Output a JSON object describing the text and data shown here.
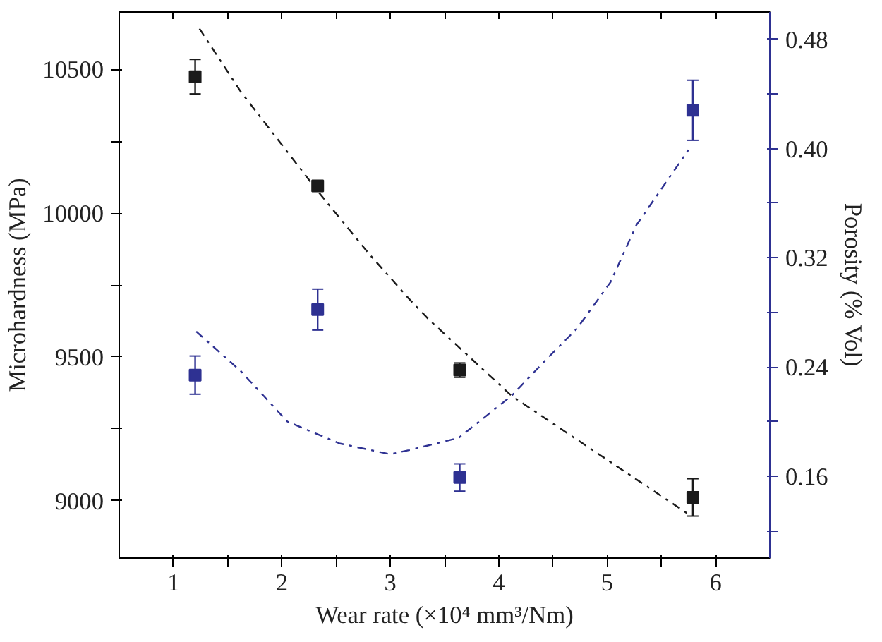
{
  "chart_data": {
    "type": "scatter",
    "xlabel": "Wear rate (×10⁴ mm³/Nm)",
    "ylabel": "Microhardness (MPa)",
    "y2label": "Porosity (% Vol)",
    "xlim": [
      0.5,
      6.5
    ],
    "xticks": [
      1,
      {
        "value": 1.5,
        "label": null
      },
      2,
      {
        "value": 2.5,
        "label": null
      },
      3,
      {
        "value": 3.5,
        "label": null
      },
      4,
      {
        "value": 4.5,
        "label": null
      },
      5,
      {
        "value": 5.5,
        "label": null
      },
      6
    ],
    "ylim": [
      8800,
      10700
    ],
    "yticks": [
      9000,
      {
        "value": 9250,
        "label": null
      },
      9500,
      {
        "value": 9750,
        "label": null
      },
      10000,
      {
        "value": 10250,
        "label": null
      },
      10500
    ],
    "y2lim": [
      0.1,
      0.5
    ],
    "y2ticks": [
      {
        "value": 0.12,
        "label": null
      },
      0.16,
      {
        "value": 0.2,
        "label": null
      },
      0.24,
      {
        "value": 0.28,
        "label": null
      },
      0.32,
      {
        "value": 0.36,
        "label": null
      },
      {
        "value": 0.4,
        "label": "0.40"
      },
      {
        "value": 0.44,
        "label": null
      },
      0.48
    ],
    "grid": false,
    "series": [
      {
        "marker": "square",
        "color": "#1a1a1a",
        "x": [
          1.2,
          2.33,
          3.64,
          5.79
        ],
        "values": [
          10475,
          10095,
          9454,
          9011
        ],
        "errors": [
          60,
          null,
          25,
          65
        ]
      },
      {
        "marker": "square",
        "color": "#2e3192",
        "axis": "y2",
        "x": [
          1.2,
          2.33,
          3.64,
          5.79
        ],
        "values": [
          0.234,
          0.282,
          0.159,
          0.428
        ],
        "errors": [
          0.014,
          0.015,
          0.01,
          0.022
        ]
      },
      {
        "type": "line",
        "color": "#1a1a1a",
        "line_style": "dashdot",
        "x": [
          1.24,
          1.62,
          2.33,
          2.8,
          3.17,
          3.35,
          4.12,
          5.76
        ],
        "values": [
          10642,
          10423,
          10077,
          9860,
          9703,
          9632,
          9364,
          8950
        ]
      },
      {
        "type": "line",
        "color": "#2e3192",
        "line_style": "dashdot",
        "axis": "y2",
        "x": [
          1.21,
          1.62,
          2.05,
          2.53,
          3.0,
          3.17,
          3.63,
          4.12,
          4.42,
          4.72,
          5.03,
          5.27,
          5.75
        ],
        "values": [
          0.266,
          0.237,
          0.2,
          0.184,
          0.176,
          0.179,
          0.188,
          0.219,
          0.244,
          0.268,
          0.302,
          0.344,
          0.399
        ]
      }
    ]
  }
}
